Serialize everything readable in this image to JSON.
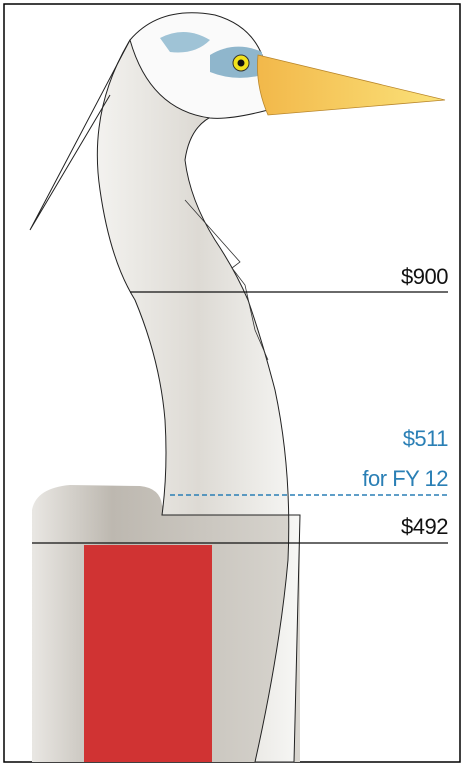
{
  "labels": {
    "top": "$900",
    "projected": "$511",
    "projected_note": "for FY 12",
    "current": "$492"
  }
}
